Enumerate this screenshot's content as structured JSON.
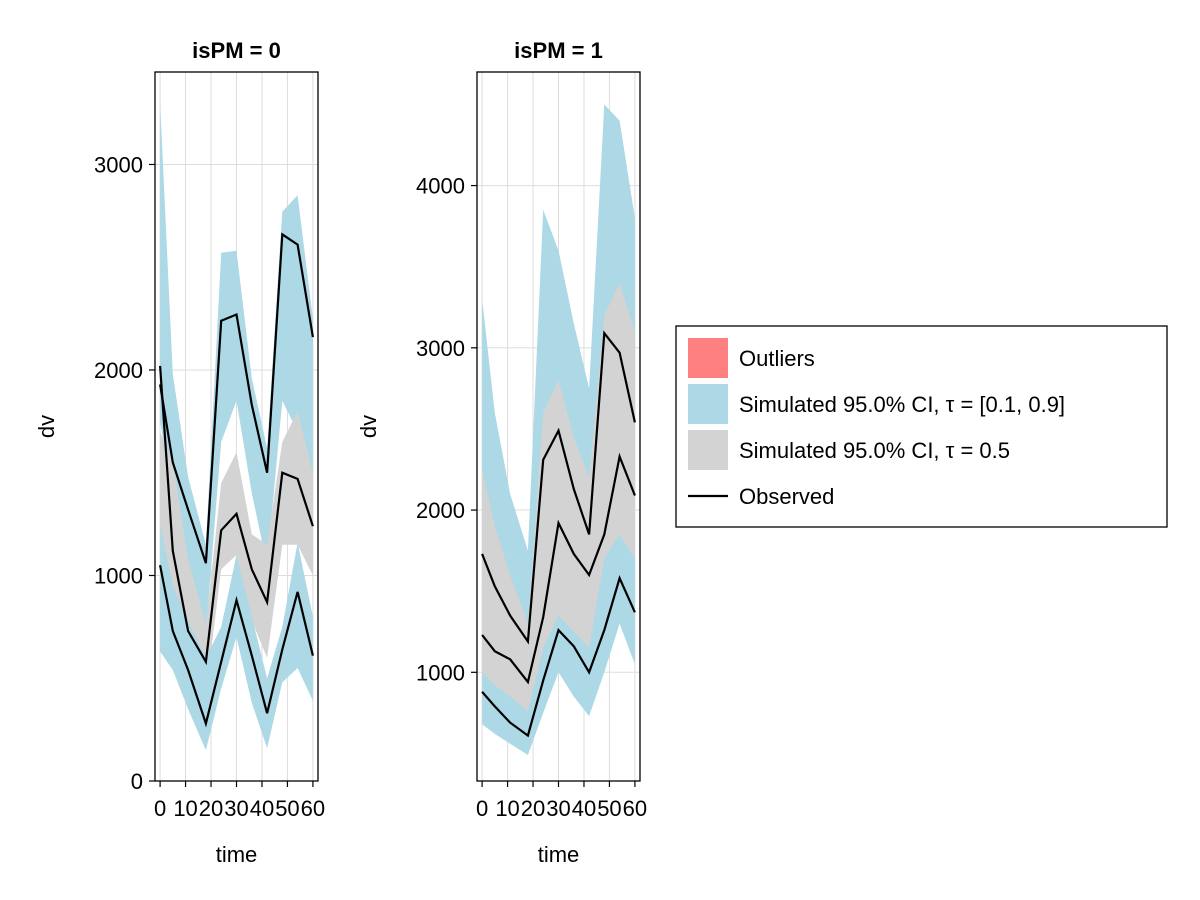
{
  "chart_data": [
    {
      "type": "area",
      "title": "isPM = 0",
      "xlabel": "time",
      "ylabel": "dv",
      "xlim": [
        -2,
        62
      ],
      "ylim": [
        0,
        3450
      ],
      "xticks": [
        0,
        10,
        20,
        30,
        40,
        50,
        60
      ],
      "xtick_labels": [
        "0",
        "10",
        "20",
        "30",
        "40",
        "50",
        "60"
      ],
      "yticks": [
        0,
        1000,
        2000,
        3000
      ],
      "ytick_labels": [
        "0",
        "1000",
        "2000",
        "3000"
      ],
      "x": [
        0,
        5,
        11,
        18,
        24,
        30,
        36,
        42,
        48,
        54,
        60
      ],
      "bands": [
        {
          "name": "Simulated 95.0% CI, τ = [0.1, 0.9]",
          "role": "upper",
          "lower": [
            1750,
            1380,
            950,
            720,
            1650,
            1850,
            1400,
            1050,
            1850,
            1700,
            1500
          ],
          "upper": [
            3300,
            1980,
            1480,
            1150,
            2570,
            2580,
            1960,
            1620,
            2770,
            2850,
            2250
          ]
        },
        {
          "name": "Simulated 95.0% CI, τ = 0.5",
          "role": "median",
          "lower": [
            850,
            820,
            600,
            430,
            1030,
            1100,
            780,
            600,
            1150,
            1150,
            1000
          ],
          "upper": [
            1700,
            1550,
            1080,
            760,
            1450,
            1600,
            1200,
            1150,
            1650,
            1800,
            1500
          ]
        },
        {
          "name": "Simulated 95.0% CI, τ = [0.1, 0.9]",
          "role": "lower",
          "lower": [
            630,
            540,
            350,
            150,
            450,
            700,
            380,
            160,
            480,
            550,
            390
          ],
          "upper": [
            1250,
            950,
            780,
            600,
            750,
            1100,
            800,
            500,
            750,
            1160,
            800
          ]
        }
      ],
      "observed": [
        [
          2020,
          1120,
          730,
          580,
          1220,
          1300,
          1030,
          870,
          1500,
          1470,
          1240
        ],
        [
          1930,
          1550,
          1320,
          1060,
          2240,
          2270,
          1830,
          1500,
          2660,
          2610,
          2160
        ],
        [
          1050,
          730,
          540,
          280,
          580,
          880,
          610,
          330,
          640,
          920,
          610
        ]
      ]
    },
    {
      "type": "area",
      "title": "isPM = 1",
      "xlabel": "time",
      "ylabel": "dv",
      "xlim": [
        -2,
        62
      ],
      "ylim": [
        330,
        4700
      ],
      "xticks": [
        0,
        10,
        20,
        30,
        40,
        50,
        60
      ],
      "xtick_labels": [
        "0",
        "10",
        "20",
        "30",
        "40",
        "50",
        "60"
      ],
      "yticks": [
        1000,
        2000,
        3000,
        4000
      ],
      "ytick_labels": [
        "1000",
        "2000",
        "3000",
        "4000"
      ],
      "x": [
        0,
        5,
        11,
        18,
        24,
        30,
        36,
        42,
        48,
        54,
        60
      ],
      "bands": [
        {
          "name": "Simulated 95.0% CI, τ = [0.1, 0.9]",
          "role": "upper",
          "lower": [
            1550,
            1400,
            1200,
            1050,
            1700,
            2000,
            1600,
            1450,
            2200,
            2400,
            2200
          ],
          "upper": [
            3300,
            2600,
            2100,
            1750,
            3850,
            3600,
            3150,
            2750,
            4500,
            4400,
            3800
          ]
        },
        {
          "name": "Simulated 95.0% CI, τ = 0.5",
          "role": "median",
          "lower": [
            950,
            900,
            820,
            700,
            1050,
            1250,
            1100,
            1000,
            1400,
            1600,
            1350
          ],
          "upper": [
            2250,
            1900,
            1600,
            1300,
            2600,
            2800,
            2450,
            2200,
            3200,
            3400,
            3100
          ]
        },
        {
          "name": "Simulated 95.0% CI, τ = [0.1, 0.9]",
          "role": "lower",
          "lower": [
            680,
            620,
            560,
            490,
            750,
            1000,
            850,
            730,
            1000,
            1300,
            1050
          ],
          "upper": [
            1000,
            920,
            850,
            760,
            1150,
            1350,
            1250,
            1150,
            1700,
            1850,
            1700
          ]
        }
      ],
      "observed": [
        [
          1230,
          1130,
          1080,
          940,
          1340,
          1920,
          1730,
          1600,
          1850,
          2330,
          2090
        ],
        [
          1730,
          1530,
          1350,
          1190,
          2310,
          2490,
          2130,
          1850,
          3090,
          2970,
          2540
        ],
        [
          880,
          790,
          690,
          610,
          950,
          1260,
          1160,
          1000,
          1260,
          1580,
          1370
        ]
      ]
    }
  ],
  "legend": {
    "placement": "right",
    "entries": [
      {
        "label": "Outliers",
        "kind": "patch",
        "color": "#ff8080"
      },
      {
        "label": "Simulated 95.0% CI, τ = [0.1, 0.9]",
        "kind": "patch",
        "color": "#add8e6"
      },
      {
        "label": "Simulated 95.0% CI, τ = 0.5",
        "kind": "patch",
        "color": "#d3d3d3"
      },
      {
        "label": "Observed",
        "kind": "line",
        "color": "#000000"
      }
    ]
  },
  "colors": {
    "outer_band": "#add8e6",
    "median_band": "#d3d3d3",
    "observed": "#000000",
    "outliers": "#ff8080",
    "grid": "#dddddd"
  },
  "grid": true
}
